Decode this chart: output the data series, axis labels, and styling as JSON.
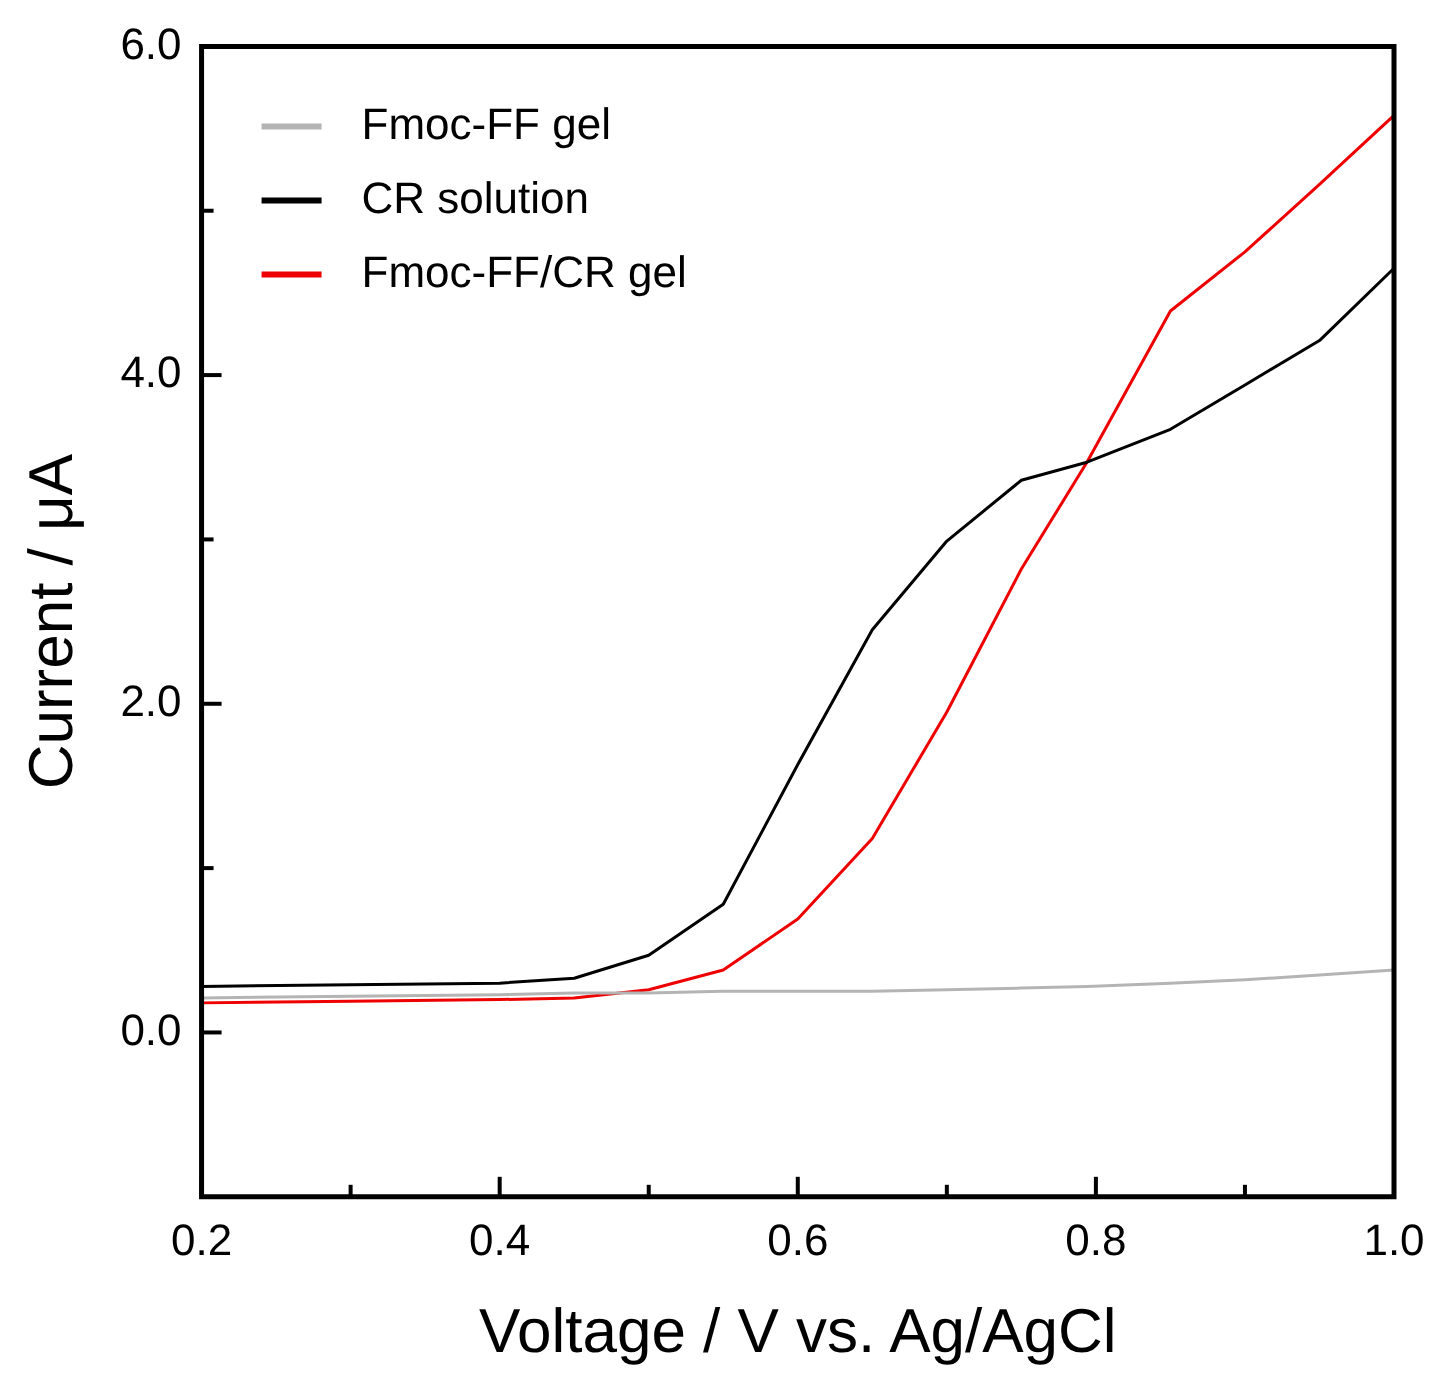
{
  "chart_data": {
    "type": "line",
    "xlabel": "Voltage / V vs. Ag/AgCl",
    "ylabel": "Current / μA",
    "xlim": [
      0.2,
      1.0
    ],
    "ylim": [
      -1.0,
      6.0
    ],
    "xticks": [
      {
        "value": 0.2,
        "label": "0.2"
      },
      {
        "value": 0.3,
        "label": null
      },
      {
        "value": 0.4,
        "label": "0.4"
      },
      {
        "value": 0.5,
        "label": null
      },
      {
        "value": 0.6,
        "label": "0.6"
      },
      {
        "value": 0.7,
        "label": null
      },
      {
        "value": 0.8,
        "label": "0.8"
      },
      {
        "value": 0.9,
        "label": null
      },
      {
        "value": 1.0,
        "label": "1.0"
      }
    ],
    "yticks": [
      {
        "value": 0.0,
        "label": "0.0"
      },
      {
        "value": 1.0,
        "label": null
      },
      {
        "value": 2.0,
        "label": "2.0"
      },
      {
        "value": 3.0,
        "label": null
      },
      {
        "value": 4.0,
        "label": "4.0"
      },
      {
        "value": 5.0,
        "label": null
      },
      {
        "value": 6.0,
        "label": "6.0"
      }
    ],
    "x": [
      0.2,
      0.3,
      0.4,
      0.45,
      0.5,
      0.55,
      0.6,
      0.65,
      0.7,
      0.75,
      0.794,
      0.85,
      0.9,
      0.95,
      1.0
    ],
    "series": [
      {
        "name": "Fmoc-FF gel",
        "color": "#b4b4b4",
        "values": [
          0.21,
          0.22,
          0.23,
          0.24,
          0.24,
          0.25,
          0.25,
          0.25,
          0.26,
          0.27,
          0.28,
          0.3,
          0.32,
          0.35,
          0.38
        ]
      },
      {
        "name": "CR solution",
        "color": "#000000",
        "values": [
          0.28,
          0.29,
          0.3,
          0.33,
          0.47,
          0.78,
          1.63,
          2.45,
          2.99,
          3.36,
          3.47,
          3.67,
          3.94,
          4.21,
          4.65
        ]
      },
      {
        "name": "Fmoc-FF/CR gel",
        "color": "#ee0000",
        "values": [
          0.18,
          0.19,
          0.2,
          0.21,
          0.26,
          0.38,
          0.69,
          1.18,
          1.95,
          2.82,
          3.47,
          4.39,
          4.75,
          5.16,
          5.58
        ]
      }
    ],
    "legend": "top left",
    "marker": "none",
    "line_style": "solid"
  }
}
